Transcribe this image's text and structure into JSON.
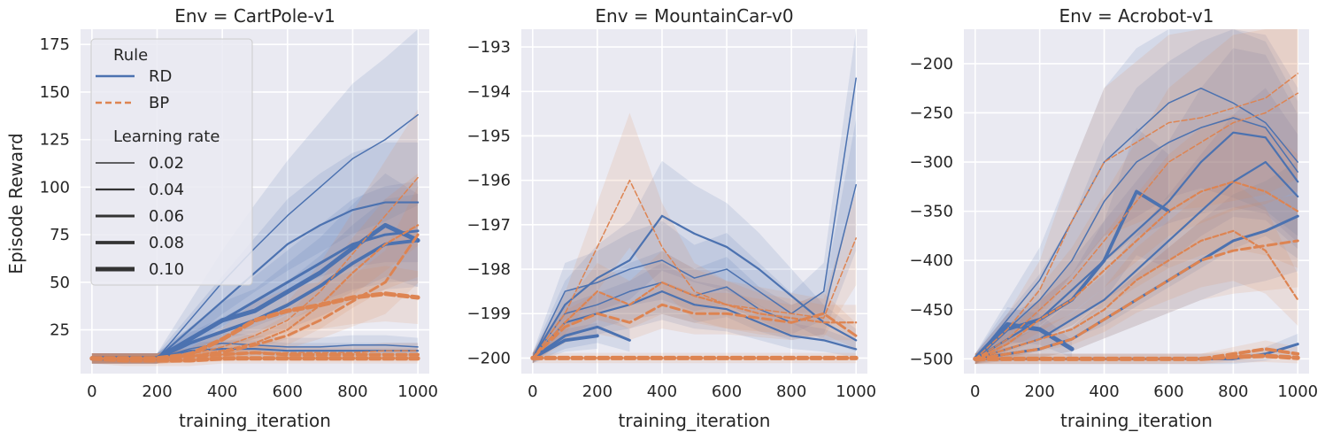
{
  "figure": {
    "ylabel": "Episode Reward",
    "xlabel": "training_iteration",
    "legend": {
      "rule_title": "Rule",
      "rule_entries": [
        {
          "label": "RD",
          "color": "#4c72b0",
          "dash": "solid"
        },
        {
          "label": "BP",
          "color": "#dd8452",
          "dash": "dashed"
        }
      ],
      "lr_title": "Learning rate",
      "lr_entries": [
        "0.02",
        "0.04",
        "0.06",
        "0.08",
        "0.10"
      ],
      "placement": "upper-left of first panel"
    },
    "colors": {
      "RD": "#4c72b0",
      "BP": "#dd8452",
      "background": "#eaeaf2",
      "grid": "#ffffff"
    }
  },
  "chart_data": [
    {
      "type": "line",
      "title": "Env = CartPole-v1",
      "xlabel": "training_iteration",
      "ylabel": "Episode Reward",
      "xlim": [
        -35,
        1035
      ],
      "ylim": [
        2,
        183
      ],
      "xticks": [
        0,
        200,
        400,
        600,
        800,
        1000
      ],
      "yticks": [
        25,
        50,
        75,
        100,
        125,
        150,
        175
      ],
      "ytick_labels": [
        "25",
        "50",
        "75",
        "100",
        "125",
        "150",
        "175"
      ],
      "x": [
        0,
        100,
        200,
        300,
        400,
        500,
        600,
        700,
        800,
        900,
        1000
      ],
      "series": [
        {
          "rule": "RD",
          "lr": "0.02",
          "values": [
            10,
            10,
            10,
            30,
            50,
            68,
            85,
            100,
            115,
            125,
            138
          ]
        },
        {
          "rule": "RD",
          "lr": "0.02",
          "values": [
            10,
            10,
            10,
            15,
            18,
            17,
            16,
            16,
            17,
            17,
            16
          ]
        },
        {
          "rule": "RD",
          "lr": "0.04",
          "values": [
            10,
            10,
            10,
            25,
            40,
            55,
            70,
            80,
            88,
            92,
            92
          ]
        },
        {
          "rule": "RD",
          "lr": "0.04",
          "values": [
            10,
            10,
            10,
            14,
            15,
            15,
            14,
            14,
            14,
            14,
            14
          ]
        },
        {
          "rule": "RD",
          "lr": "0.06",
          "values": [
            10,
            10,
            10,
            20,
            30,
            40,
            50,
            60,
            70,
            75,
            77
          ]
        },
        {
          "rule": "RD",
          "lr": "0.08",
          "values": [
            10,
            10,
            10,
            18,
            24,
            30,
            38,
            48,
            60,
            70,
            72
          ]
        },
        {
          "rule": "RD",
          "lr": "0.10",
          "values": [
            10,
            10,
            10,
            20,
            30,
            35,
            45,
            55,
            68,
            80,
            72
          ]
        },
        {
          "rule": "BP",
          "lr": "0.02",
          "values": [
            10,
            10,
            10,
            12,
            16,
            22,
            30,
            45,
            65,
            85,
            105
          ]
        },
        {
          "rule": "BP",
          "lr": "0.02",
          "values": [
            10,
            10,
            10,
            11,
            12,
            13,
            13,
            13,
            13,
            14,
            14
          ]
        },
        {
          "rule": "BP",
          "lr": "0.04",
          "values": [
            10,
            10,
            10,
            11,
            14,
            18,
            25,
            38,
            55,
            70,
            80
          ]
        },
        {
          "rule": "BP",
          "lr": "0.06",
          "values": [
            10,
            10,
            10,
            11,
            13,
            17,
            22,
            30,
            40,
            50,
            75
          ]
        },
        {
          "rule": "BP",
          "lr": "0.08",
          "values": [
            10,
            10,
            10,
            11,
            12,
            13,
            12,
            12,
            12,
            12,
            12
          ]
        },
        {
          "rule": "BP",
          "lr": "0.10",
          "values": [
            10,
            10,
            10,
            12,
            20,
            30,
            35,
            38,
            42,
            44,
            42
          ]
        },
        {
          "rule": "BP",
          "lr": "0.10",
          "values": [
            10,
            9,
            9,
            9,
            10,
            10,
            10,
            10,
            10,
            10,
            10
          ]
        }
      ]
    },
    {
      "type": "line",
      "title": "Env = MountainCar-v0",
      "xlabel": "training_iteration",
      "ylabel": "",
      "xlim": [
        -35,
        1035
      ],
      "ylim": [
        -200.35,
        -192.6
      ],
      "xticks": [
        0,
        200,
        400,
        600,
        800,
        1000
      ],
      "yticks": [
        -200,
        -199,
        -198,
        -197,
        -196,
        -195,
        -194,
        -193
      ],
      "ytick_labels": [
        "−200",
        "−199",
        "−198",
        "−197",
        "−196",
        "−195",
        "−194",
        "−193"
      ],
      "x": [
        0,
        100,
        200,
        300,
        400,
        500,
        600,
        700,
        800,
        900,
        1000
      ],
      "series": [
        {
          "rule": "RD",
          "lr": "0.02",
          "values": [
            -200,
            -198.5,
            -198.3,
            -198.0,
            -197.8,
            -198.2,
            -198.0,
            -198.5,
            -199.0,
            -198.5,
            -193.7
          ]
        },
        {
          "rule": "RD",
          "lr": "0.02",
          "values": [
            -200,
            -199.0,
            -198.8,
            -198.5,
            -198.3,
            -198.6,
            -198.4,
            -198.9,
            -199.2,
            -199.0,
            -196.1
          ]
        },
        {
          "rule": "RD",
          "lr": "0.04",
          "values": [
            -200,
            -198.8,
            -198.2,
            -197.8,
            -196.8,
            -197.2,
            -197.5,
            -198.0,
            -198.6,
            -199.2,
            -199.6
          ]
        },
        {
          "rule": "RD",
          "lr": "0.04",
          "values": [
            -200,
            -199.2,
            -199.0,
            -198.8,
            -198.5,
            -198.8,
            -198.9,
            -199.2,
            -199.5,
            -199.6,
            -199.8
          ]
        },
        {
          "rule": "RD",
          "lr": "0.06",
          "values": [
            -200,
            -199.5,
            -199.3,
            -199.6,
            null,
            null,
            null,
            null,
            null,
            null,
            null
          ]
        },
        {
          "rule": "RD",
          "lr": "0.08",
          "values": [
            -200,
            -199.6,
            -199.5,
            null,
            null,
            null,
            null,
            null,
            null,
            null,
            null
          ]
        },
        {
          "rule": "BP",
          "lr": "0.02",
          "values": [
            -200,
            -199.0,
            -197.5,
            -196.0,
            -197.5,
            -198.5,
            -198.8,
            -198.9,
            -199.0,
            -199.1,
            -197.3
          ]
        },
        {
          "rule": "BP",
          "lr": "0.04",
          "values": [
            -200,
            -199.2,
            -198.5,
            -198.8,
            -198.3,
            -198.6,
            -198.8,
            -199.0,
            -199.1,
            -199.2,
            -199.2
          ]
        },
        {
          "rule": "BP",
          "lr": "0.06",
          "values": [
            -200,
            -199.3,
            -199.0,
            -199.2,
            -198.8,
            -199.0,
            -199.0,
            -199.1,
            -199.2,
            -199.0,
            -199.5
          ]
        },
        {
          "rule": "BP",
          "lr": "0.10",
          "values": [
            -200,
            -200,
            -200,
            -200,
            -200,
            -200,
            -200,
            -200,
            -200,
            -200,
            -200
          ]
        }
      ]
    },
    {
      "type": "line",
      "title": "Env = Acrobot-v1",
      "xlabel": "training_iteration",
      "ylabel": "",
      "xlim": [
        -35,
        1035
      ],
      "ylim": [
        -515,
        -165
      ],
      "xticks": [
        0,
        200,
        400,
        600,
        800,
        1000
      ],
      "yticks": [
        -500,
        -450,
        -400,
        -350,
        -300,
        -250,
        -200
      ],
      "ytick_labels": [
        "−500",
        "−450",
        "−400",
        "−350",
        "−300",
        "−250",
        "−200"
      ],
      "x": [
        0,
        100,
        200,
        300,
        400,
        500,
        600,
        700,
        800,
        900,
        1000
      ],
      "series": [
        {
          "rule": "RD",
          "lr": "0.02",
          "values": [
            -500,
            -460,
            -420,
            -360,
            -300,
            -270,
            -240,
            -225,
            -240,
            -260,
            -300
          ]
        },
        {
          "rule": "RD",
          "lr": "0.02",
          "values": [
            -500,
            -470,
            -440,
            -400,
            -340,
            -300,
            -280,
            -265,
            -255,
            -265,
            -310
          ]
        },
        {
          "rule": "RD",
          "lr": "0.04",
          "values": [
            -500,
            -480,
            -460,
            -430,
            -400,
            -370,
            -340,
            -300,
            -270,
            -275,
            -320
          ]
        },
        {
          "rule": "RD",
          "lr": "0.04",
          "values": [
            -500,
            -490,
            -480,
            -460,
            -440,
            -410,
            -380,
            -350,
            -320,
            -300,
            -335
          ]
        },
        {
          "rule": "RD",
          "lr": "0.06",
          "values": [
            -500,
            -495,
            -490,
            -480,
            -460,
            -440,
            -420,
            -400,
            -380,
            -370,
            -355
          ]
        },
        {
          "rule": "RD",
          "lr": "0.06",
          "values": [
            -500,
            -500,
            -500,
            -500,
            -500,
            -500,
            -500,
            -500,
            -500,
            -495,
            -485
          ]
        },
        {
          "rule": "RD",
          "lr": "0.08",
          "values": [
            -500,
            -470,
            -460,
            -440,
            -400,
            -330,
            -350,
            null,
            null,
            null,
            null
          ]
        },
        {
          "rule": "RD",
          "lr": "0.10",
          "values": [
            -500,
            -465,
            -470,
            -490,
            null,
            null,
            null,
            null,
            null,
            null,
            null
          ]
        },
        {
          "rule": "BP",
          "lr": "0.02",
          "values": [
            -500,
            -470,
            -430,
            -360,
            -300,
            -280,
            -260,
            -255,
            -245,
            -235,
            -210
          ]
        },
        {
          "rule": "BP",
          "lr": "0.02",
          "values": [
            -500,
            -480,
            -450,
            -420,
            -380,
            -340,
            -300,
            -280,
            -260,
            -250,
            -230
          ]
        },
        {
          "rule": "BP",
          "lr": "0.04",
          "values": [
            -500,
            -485,
            -460,
            -440,
            -410,
            -380,
            -350,
            -330,
            -320,
            -330,
            -350
          ]
        },
        {
          "rule": "BP",
          "lr": "0.04",
          "values": [
            -500,
            -490,
            -480,
            -470,
            -450,
            -420,
            -400,
            -380,
            -370,
            -390,
            -440
          ]
        },
        {
          "rule": "BP",
          "lr": "0.06",
          "values": [
            -500,
            -495,
            -490,
            -480,
            -460,
            -440,
            -420,
            -400,
            -390,
            -385,
            -380
          ]
        },
        {
          "rule": "BP",
          "lr": "0.08",
          "values": [
            -500,
            -500,
            -500,
            -500,
            -500,
            -500,
            -500,
            -500,
            -495,
            -490,
            -495
          ]
        },
        {
          "rule": "BP",
          "lr": "0.10",
          "values": [
            -500,
            -500,
            -500,
            -500,
            -500,
            -500,
            -500,
            -500,
            -498,
            -497,
            -499
          ]
        }
      ]
    }
  ]
}
